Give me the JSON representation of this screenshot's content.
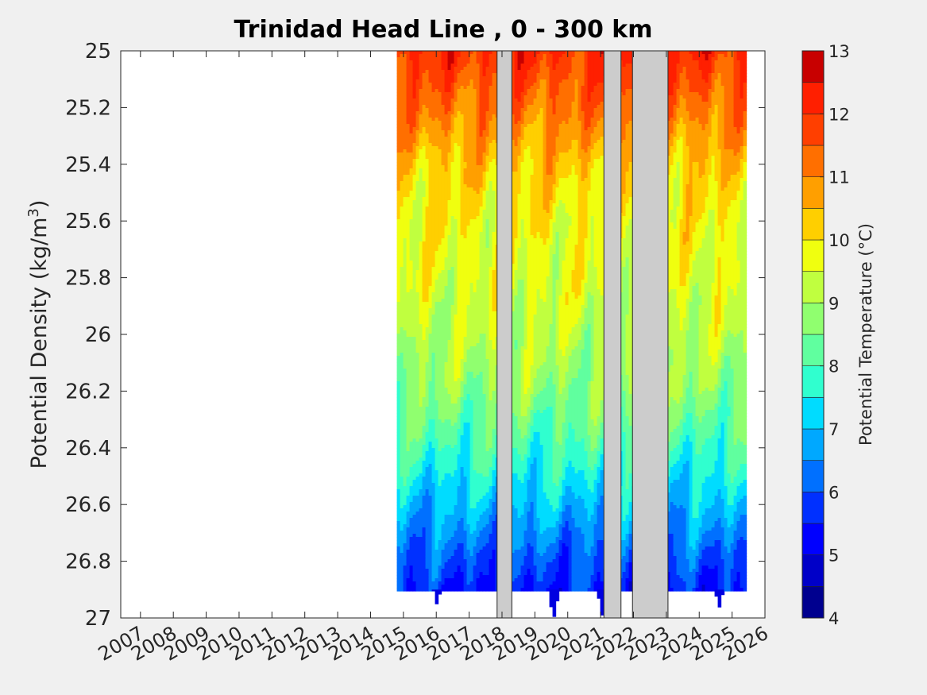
{
  "chart_data": {
    "type": "heatmap",
    "subtype": "filled-contour",
    "title": "Trinidad Head Line , 0 - 300 km",
    "ylabel": "Potential Density (kg/m3)",
    "ylabel_base": "Potential Density (kg/m",
    "ylabel_sup": "3",
    "ylabel_close": ")",
    "xlabel": "",
    "ylim": [
      25,
      27
    ],
    "y_reversed": true,
    "xlim": [
      2006.4,
      2026.0
    ],
    "y_ticks": [
      "25",
      "25.2",
      "25.4",
      "25.6",
      "25.8",
      "26",
      "26.2",
      "26.4",
      "26.6",
      "26.8",
      "27"
    ],
    "x_ticks": [
      "2007",
      "2008",
      "2009",
      "2010",
      "2011",
      "2012",
      "2013",
      "2014",
      "2015",
      "2016",
      "2017",
      "2018",
      "2019",
      "2020",
      "2021",
      "2022",
      "2023",
      "2024",
      "2025",
      "2026"
    ],
    "colorbar": {
      "label": "Potential Temperature (°C)",
      "range": [
        4,
        13
      ],
      "ticks": [
        "4",
        "5",
        "6",
        "7",
        "8",
        "9",
        "10",
        "11",
        "12",
        "13"
      ],
      "levels": [
        4,
        4.5,
        5,
        5.5,
        6,
        6.5,
        7,
        7.5,
        8,
        8.5,
        9,
        9.5,
        10,
        10.5,
        11,
        11.5,
        12,
        12.5,
        13
      ],
      "colors": [
        "#00008f",
        "#0000c8",
        "#0000ff",
        "#0030ff",
        "#0070ff",
        "#00a8ff",
        "#00dcff",
        "#30ffcf",
        "#60ff9f",
        "#90ff6f",
        "#c0ff3f",
        "#f0ff0f",
        "#ffcf00",
        "#ff9f00",
        "#ff6f00",
        "#ff3f00",
        "#ff1f00",
        "#c80000"
      ],
      "colormap": "jet"
    },
    "data_extent": {
      "x_start": 2014.8,
      "x_end": 2025.4,
      "y_bottom_continuous": 26.9
    },
    "profile": {
      "density": [
        25.0,
        25.2,
        25.4,
        25.6,
        25.8,
        26.0,
        26.2,
        26.4,
        26.6,
        26.8,
        26.9
      ],
      "temperature": [
        12.0,
        11.2,
        10.3,
        9.8,
        9.6,
        9.2,
        8.7,
        7.9,
        7.0,
        6.0,
        5.6
      ]
    },
    "gaps_no_data": [
      {
        "start": 2017.85,
        "end": 2018.3
      },
      {
        "start": 2021.1,
        "end": 2021.62
      },
      {
        "start": 2021.97,
        "end": 2023.05
      }
    ],
    "grid": false,
    "legend": "colorbar-right"
  }
}
